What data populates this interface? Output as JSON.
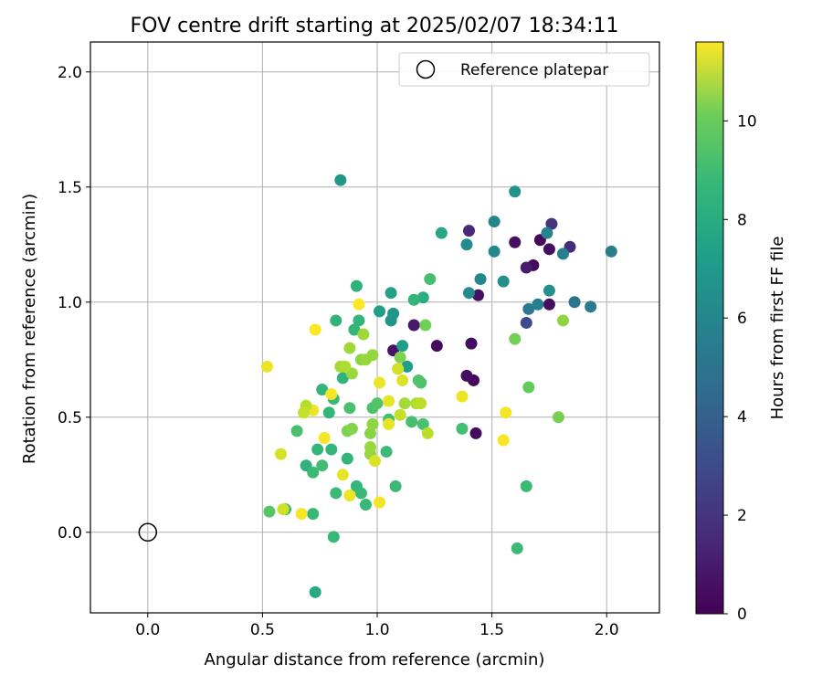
{
  "chart_data": {
    "type": "scatter",
    "title": "FOV centre drift starting at 2025/02/07 18:34:11",
    "xlabel": "Angular distance from reference (arcmin)",
    "ylabel": "Rotation from reference (arcmin)",
    "xlim": [
      -0.25,
      2.23
    ],
    "ylim": [
      -0.35,
      2.13
    ],
    "xticks": [
      0.0,
      0.5,
      1.0,
      1.5,
      2.0
    ],
    "yticks": [
      0.0,
      0.5,
      1.0,
      1.5,
      2.0
    ],
    "xtick_labels": [
      "0.0",
      "0.5",
      "1.0",
      "1.5",
      "2.0"
    ],
    "ytick_labels": [
      "0.0",
      "0.5",
      "1.0",
      "1.5",
      "2.0"
    ],
    "grid": true,
    "colormap": "viridis",
    "colorbar": {
      "label": "Hours from first FF file",
      "range": [
        0,
        11.6
      ],
      "ticks": [
        0,
        2,
        4,
        6,
        8,
        10
      ],
      "tick_labels": [
        "0",
        "2",
        "4",
        "6",
        "8",
        "10"
      ]
    },
    "legend": {
      "position": "top-right",
      "entries": [
        "Reference platepar"
      ]
    },
    "reference_point": {
      "label": "Reference platepar",
      "x": 0.0,
      "y": 0.0
    },
    "series": [
      {
        "points": [
          [
            1.71,
            1.27,
            0.2
          ],
          [
            1.68,
            1.16,
            0.3
          ],
          [
            1.75,
            1.23,
            0.4
          ],
          [
            1.6,
            1.26,
            0.5
          ],
          [
            1.41,
            0.82,
            0.4
          ],
          [
            1.26,
            0.81,
            0.3
          ],
          [
            1.42,
            0.66,
            0.2
          ],
          [
            1.39,
            0.68,
            0.5
          ],
          [
            1.43,
            0.43,
            0.3
          ],
          [
            1.44,
            1.03,
            0.5
          ],
          [
            1.75,
            0.99,
            0.4
          ],
          [
            1.07,
            0.79,
            0.6
          ],
          [
            1.16,
            0.9,
            0.8
          ],
          [
            1.65,
            1.15,
            0.9
          ],
          [
            1.4,
            1.31,
            1.3
          ],
          [
            1.84,
            1.24,
            1.5
          ],
          [
            1.76,
            1.34,
            1.8
          ],
          [
            1.65,
            0.91,
            2.6
          ],
          [
            1.86,
            1.0,
            4.4
          ],
          [
            1.93,
            0.98,
            4.8
          ],
          [
            1.66,
            0.97,
            4.7
          ],
          [
            1.81,
            1.21,
            5.0
          ],
          [
            2.02,
            1.22,
            4.9
          ],
          [
            1.74,
            1.3,
            5.2
          ],
          [
            1.7,
            0.99,
            5.1
          ],
          [
            1.51,
            1.35,
            5.3
          ],
          [
            1.51,
            1.22,
            5.4
          ],
          [
            1.45,
            1.1,
            5.5
          ],
          [
            1.4,
            1.04,
            5.6
          ],
          [
            1.39,
            1.25,
            5.6
          ],
          [
            1.55,
            1.09,
            5.8
          ],
          [
            1.6,
            1.48,
            5.9
          ],
          [
            1.75,
            1.05,
            5.8
          ],
          [
            0.84,
            1.53,
            6.1
          ],
          [
            1.06,
            0.92,
            6.0
          ],
          [
            1.07,
            0.95,
            6.1
          ],
          [
            1.11,
            0.81,
            6.4
          ],
          [
            1.13,
            0.72,
            6.5
          ],
          [
            1.06,
            1.04,
            6.6
          ],
          [
            1.01,
            0.96,
            6.5
          ],
          [
            1.28,
            1.3,
            6.9
          ],
          [
            1.2,
            1.02,
            7.2
          ],
          [
            1.16,
            1.01,
            7.6
          ],
          [
            0.73,
            -0.26,
            7.0
          ],
          [
            0.91,
            1.07,
            7.4
          ],
          [
            0.82,
            0.92,
            7.5
          ],
          [
            0.92,
            0.92,
            7.6
          ],
          [
            0.9,
            0.88,
            7.7
          ],
          [
            0.85,
            0.67,
            7.5
          ],
          [
            0.79,
            0.52,
            7.7
          ],
          [
            0.76,
            0.62,
            7.6
          ],
          [
            0.81,
            0.58,
            7.8
          ],
          [
            0.8,
            0.36,
            7.6
          ],
          [
            0.74,
            0.36,
            7.7
          ],
          [
            0.69,
            0.29,
            7.5
          ],
          [
            0.72,
            0.26,
            7.9
          ],
          [
            0.76,
            0.29,
            8.0
          ],
          [
            0.87,
            0.32,
            7.6
          ],
          [
            0.95,
            0.12,
            7.8
          ],
          [
            0.91,
            0.2,
            7.7
          ],
          [
            0.93,
            0.17,
            7.8
          ],
          [
            0.82,
            0.17,
            7.9
          ],
          [
            0.72,
            0.08,
            7.8
          ],
          [
            0.6,
            0.1,
            8.0
          ],
          [
            0.53,
            0.09,
            8.5
          ],
          [
            0.81,
            -0.02,
            7.8
          ],
          [
            0.65,
            0.44,
            8.2
          ],
          [
            0.88,
            0.54,
            8.2
          ],
          [
            0.98,
            0.54,
            8.3
          ],
          [
            1.0,
            0.56,
            8.4
          ],
          [
            1.04,
            0.35,
            7.9
          ],
          [
            1.08,
            0.2,
            7.9
          ],
          [
            1.05,
            0.49,
            8.1
          ],
          [
            1.15,
            0.48,
            8.1
          ],
          [
            1.2,
            0.47,
            8.2
          ],
          [
            1.19,
            0.65,
            8.3
          ],
          [
            1.18,
            0.66,
            8.4
          ],
          [
            1.23,
            1.1,
            8.1
          ],
          [
            1.37,
            0.45,
            8.1
          ],
          [
            1.61,
            -0.07,
            7.9
          ],
          [
            1.65,
            0.2,
            7.9
          ],
          [
            1.66,
            0.63,
            8.8
          ],
          [
            1.79,
            0.5,
            9.2
          ],
          [
            1.6,
            0.84,
            9.1
          ],
          [
            1.81,
            0.92,
            9.6
          ],
          [
            1.21,
            0.9,
            9.1
          ],
          [
            1.1,
            0.76,
            9.3
          ],
          [
            0.87,
            0.44,
            9.3
          ],
          [
            0.89,
            0.45,
            9.4
          ],
          [
            0.97,
            0.43,
            9.5
          ],
          [
            0.98,
            0.47,
            9.6
          ],
          [
            0.97,
            0.34,
            9.7
          ],
          [
            0.97,
            0.37,
            9.8
          ],
          [
            0.93,
            0.75,
            9.6
          ],
          [
            0.95,
            0.75,
            9.8
          ],
          [
            0.98,
            0.77,
            9.7
          ],
          [
            0.94,
            0.86,
            9.9
          ],
          [
            0.88,
            0.8,
            9.9
          ],
          [
            0.89,
            0.69,
            9.8
          ],
          [
            0.84,
            0.72,
            10.0
          ],
          [
            0.86,
            0.72,
            10.2
          ],
          [
            1.12,
            0.56,
            10.0
          ],
          [
            1.17,
            0.56,
            10.2
          ],
          [
            1.19,
            0.56,
            10.4
          ],
          [
            1.22,
            0.43,
            10.4
          ],
          [
            1.1,
            0.51,
            10.6
          ],
          [
            1.09,
            0.71,
            10.8
          ],
          [
            1.11,
            0.66,
            11.0
          ],
          [
            1.05,
            0.47,
            11.2
          ],
          [
            0.99,
            0.31,
            11.0
          ],
          [
            1.01,
            0.65,
            11.3
          ],
          [
            0.8,
            0.6,
            11.5
          ],
          [
            0.77,
            0.41,
            11.5
          ],
          [
            0.72,
            0.53,
            11.3
          ],
          [
            0.69,
            0.55,
            10.3
          ],
          [
            0.68,
            0.52,
            10.6
          ],
          [
            0.58,
            0.34,
            10.9
          ],
          [
            0.52,
            0.72,
            11.3
          ],
          [
            0.73,
            0.88,
            11.6
          ],
          [
            0.92,
            0.99,
            11.6
          ],
          [
            1.05,
            0.57,
            11.2
          ],
          [
            1.37,
            0.59,
            11.3
          ],
          [
            1.56,
            0.52,
            11.4
          ],
          [
            1.55,
            0.4,
            11.5
          ],
          [
            1.01,
            0.13,
            11.4
          ],
          [
            0.88,
            0.16,
            11.3
          ],
          [
            0.85,
            0.25,
            11.2
          ],
          [
            0.67,
            0.08,
            11.5
          ],
          [
            0.59,
            0.1,
            10.8
          ]
        ]
      }
    ]
  }
}
